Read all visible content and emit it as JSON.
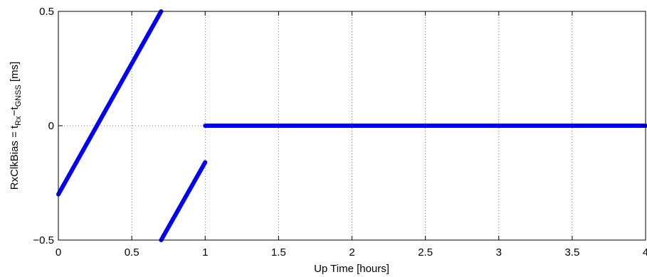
{
  "chart_data": {
    "type": "line",
    "xlabel": "Up Time [hours]",
    "ylabel": {
      "prefix": "RxClkBias = t",
      "sub1": "Rx",
      "mid": "−t",
      "sub2": "GNSS",
      "suffix": " [ms]"
    },
    "xlim": [
      0,
      4
    ],
    "ylim": [
      -0.5,
      0.5
    ],
    "xticks": [
      0,
      0.5,
      1,
      1.5,
      2,
      2.5,
      3,
      3.5,
      4
    ],
    "xtick_labels": [
      "0",
      "0.5",
      "1",
      "1.5",
      "2",
      "2.5",
      "3",
      "3.5",
      "4"
    ],
    "yticks": [
      -0.5,
      0,
      0.5
    ],
    "ytick_labels": [
      "−0.5",
      "0",
      "0.5"
    ],
    "grid": true,
    "color": "#0000ff",
    "series": [
      {
        "x": [
          0,
          0.7
        ],
        "y": [
          -0.3,
          0.5
        ]
      },
      {
        "x": [
          0.7,
          1.0
        ],
        "y": [
          -0.5,
          -0.16
        ]
      },
      {
        "x": [
          1.0,
          4.0
        ],
        "y": [
          0,
          0
        ]
      }
    ]
  }
}
